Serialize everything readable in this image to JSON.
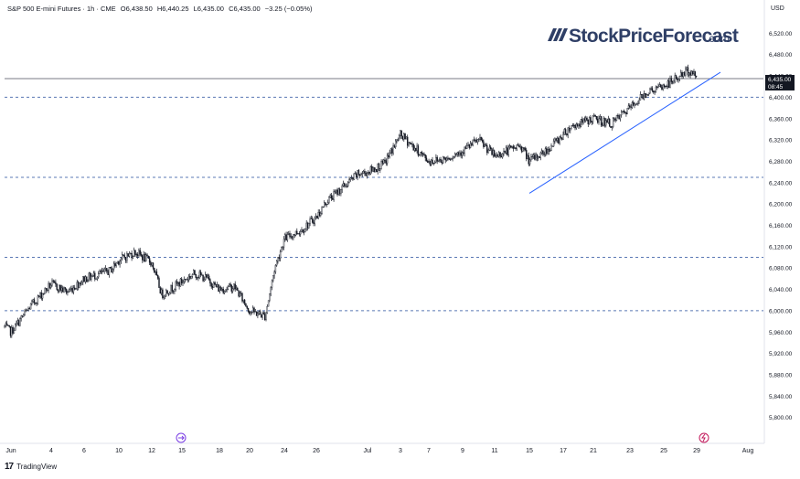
{
  "header": {
    "symbol": "S&P 500 E-mini Futures · 1h · CME",
    "open": "O6,438.50",
    "high": "H6,440.25",
    "low": "L6,435.00",
    "close": "C6,435.00",
    "change": "−3.25 (−0.05%)"
  },
  "currency": "USD",
  "watermark": {
    "brand": "StockPriceForecast",
    "suffix": ".com"
  },
  "price_badge": {
    "price": "6,435.00",
    "countdown": "08:45"
  },
  "footer": {
    "brand": "TradingView"
  },
  "colors": {
    "candle": "#131722",
    "trendline": "#2962ff",
    "level": "#5b78b4",
    "badge": "#131722"
  },
  "chart_data": {
    "type": "candlestick",
    "title": "",
    "xlabel": "",
    "ylabel": "",
    "ylim": [
      5760,
      6560
    ],
    "y_ticks": [
      "6,520.00",
      "6,480.00",
      "6,440.00",
      "6,400.00",
      "6,360.00",
      "6,320.00",
      "6,280.00",
      "6,240.00",
      "6,200.00",
      "6,160.00",
      "6,120.00",
      "6,080.00",
      "6,040.00",
      "6,000.00",
      "5,960.00",
      "5,920.00",
      "5,880.00",
      "5,840.00",
      "5,800.00"
    ],
    "x_ticks": [
      "Jun",
      "4",
      "6",
      "10",
      "12",
      "15",
      "18",
      "20",
      "24",
      "26",
      "Jul",
      "3",
      "7",
      "9",
      "11",
      "15",
      "17",
      "21",
      "23",
      "25",
      "29",
      "Aug"
    ],
    "horizontal_levels": [
      6400,
      6250,
      6100,
      6000
    ],
    "last_price": 6435.0,
    "trendline": {
      "from": [
        "Jul 15",
        6220
      ],
      "to": [
        "Jul 29",
        6440
      ]
    },
    "series": [
      {
        "values": [
          [
            "May 30",
            5970
          ],
          [
            "Jun 2",
            5960
          ],
          [
            "Jun 3",
            6010
          ],
          [
            "Jun 4",
            6050
          ],
          [
            "Jun 5",
            6035
          ],
          [
            "Jun 6",
            6060
          ],
          [
            "Jun 9",
            6075
          ],
          [
            "Jun 10",
            6095
          ],
          [
            "Jun 11",
            6110
          ],
          [
            "Jun 12",
            6090
          ],
          [
            "Jun 13",
            6030
          ],
          [
            "Jun 16",
            6070
          ],
          [
            "Jun 17",
            6060
          ],
          [
            "Jun 18",
            6040
          ],
          [
            "Jun 19",
            6045
          ],
          [
            "Jun 20",
            6000
          ],
          [
            "Jun 22",
            5990
          ],
          [
            "Jun 23",
            6080
          ],
          [
            "Jun 24",
            6135
          ],
          [
            "Jun 25",
            6150
          ],
          [
            "Jun 26",
            6175
          ],
          [
            "Jun 27",
            6205
          ],
          [
            "Jun 30",
            6255
          ],
          [
            "Jul 1",
            6260
          ],
          [
            "Jul 2",
            6275
          ],
          [
            "Jul 3",
            6330
          ],
          [
            "Jul 7",
            6280
          ],
          [
            "Jul 8",
            6285
          ],
          [
            "Jul 9",
            6300
          ],
          [
            "Jul 10",
            6320
          ],
          [
            "Jul 11",
            6290
          ],
          [
            "Jul 14",
            6310
          ],
          [
            "Jul 15",
            6280
          ],
          [
            "Jul 16",
            6300
          ],
          [
            "Jul 17",
            6330
          ],
          [
            "Jul 18",
            6345
          ],
          [
            "Jul 21",
            6360
          ],
          [
            "Jul 22",
            6350
          ],
          [
            "Jul 23",
            6380
          ],
          [
            "Jul 24",
            6410
          ],
          [
            "Jul 25",
            6420
          ],
          [
            "Jul 28",
            6450
          ],
          [
            "Jul 29",
            6438
          ]
        ]
      }
    ]
  }
}
